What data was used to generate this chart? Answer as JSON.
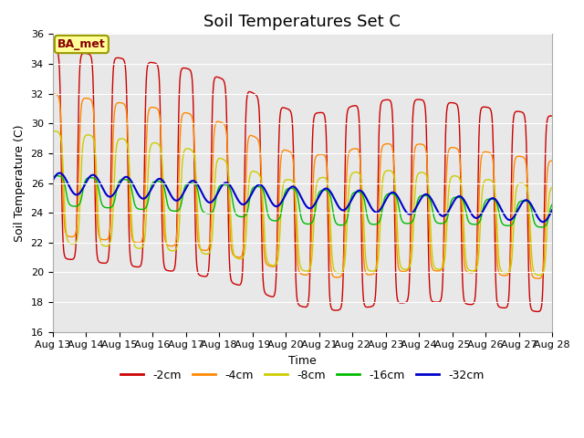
{
  "title": "Soil Temperatures Set C",
  "xlabel": "Time",
  "ylabel": "Soil Temperature (C)",
  "ylim": [
    16,
    36
  ],
  "xlim": [
    0,
    15
  ],
  "xtick_labels": [
    "Aug 13",
    "Aug 14",
    "Aug 15",
    "Aug 16",
    "Aug 17",
    "Aug 18",
    "Aug 19",
    "Aug 20",
    "Aug 21",
    "Aug 22",
    "Aug 23",
    "Aug 24",
    "Aug 25",
    "Aug 26",
    "Aug 27",
    "Aug 28"
  ],
  "colors": {
    "-2cm": "#cc0000",
    "-4cm": "#ff8800",
    "-8cm": "#cccc00",
    "-16cm": "#00bb00",
    "-32cm": "#0000cc"
  },
  "bg_color": "#e8e8e8",
  "ba_met_bg": "#ffff99",
  "ba_met_border": "#999900",
  "title_fontsize": 13,
  "axis_fontsize": 9,
  "tick_fontsize": 8
}
